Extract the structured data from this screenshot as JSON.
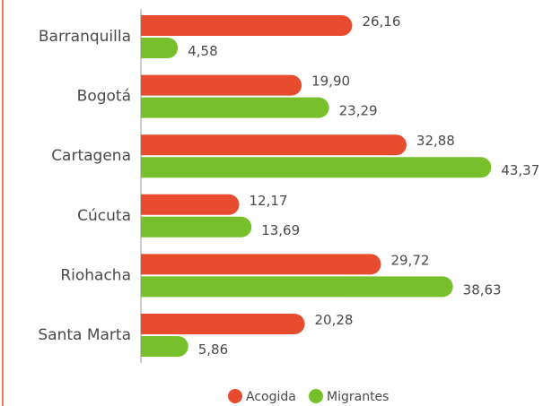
{
  "chart_data": {
    "type": "bar",
    "orientation": "horizontal",
    "categories": [
      "Barranquilla",
      "Bogotá",
      "Cartagena",
      "Cúcuta",
      "Riohacha",
      "Santa Marta"
    ],
    "series": [
      {
        "name": "Acogida",
        "color": "#e84c2f",
        "values": [
          26.16,
          19.9,
          32.88,
          12.17,
          29.72,
          20.28
        ],
        "value_labels": [
          "26,16",
          "19,90",
          "32,88",
          "12,17",
          "29,72",
          "20,28"
        ]
      },
      {
        "name": "Migrantes",
        "color": "#77bf2b",
        "values": [
          4.58,
          23.29,
          43.37,
          13.69,
          38.63,
          5.86
        ],
        "value_labels": [
          "4,58",
          "23,29",
          "43,37",
          "13,69",
          "38,63",
          "5,86"
        ]
      }
    ],
    "xlim": [
      0,
      45
    ]
  }
}
